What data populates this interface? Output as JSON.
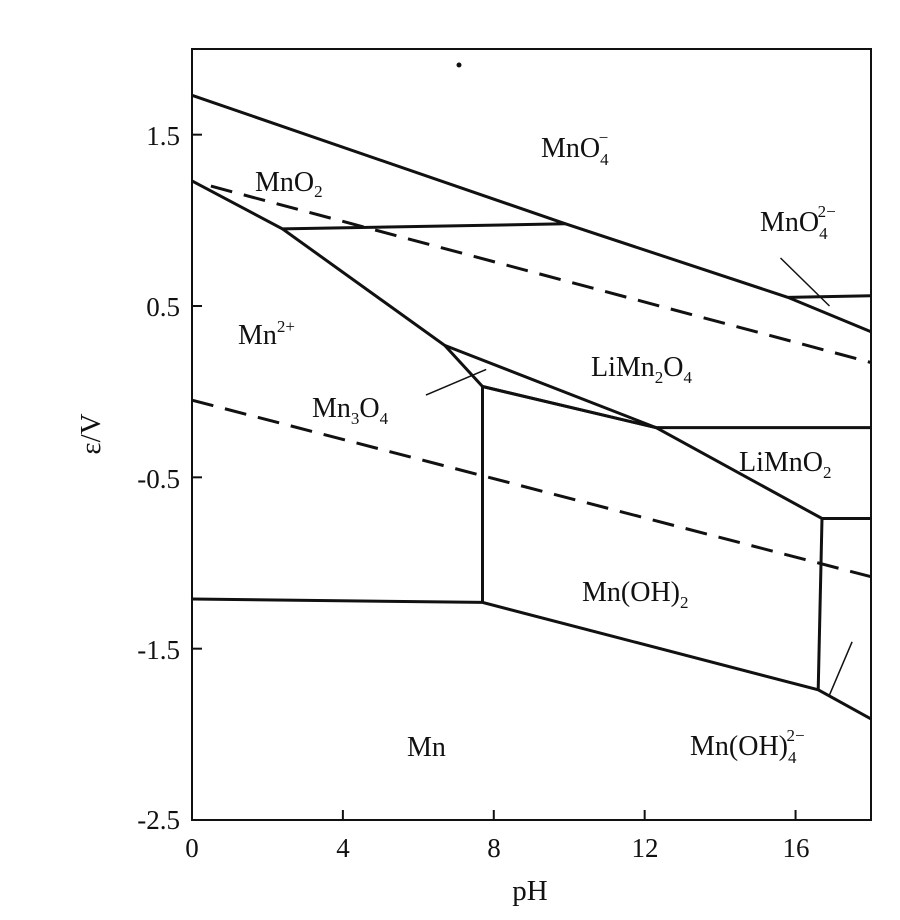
{
  "chart_data": {
    "type": "diagram",
    "xlabel": "pH",
    "ylabel": "ε/V",
    "xlim": [
      0,
      18
    ],
    "ylim": [
      -2.5,
      2.0
    ],
    "x_ticks": [
      "0",
      "4",
      "8",
      "12",
      "16"
    ],
    "x_tick_values": [
      0,
      4,
      8,
      12,
      16
    ],
    "y_ticks": [
      "1.5",
      "0.5",
      "-0.5",
      "-1.5",
      "-2.5"
    ],
    "y_tick_values": [
      1.5,
      0.5,
      -0.5,
      -1.5,
      -2.5
    ],
    "regions": {
      "mno4_minus": {
        "base": "MnO",
        "sub": "4",
        "sup": "−"
      },
      "mno2": {
        "base": "MnO",
        "sub": "2"
      },
      "mno4_2minus": {
        "base": "MnO",
        "sub": "4",
        "sup": "2−"
      },
      "mn2plus": {
        "base": "Mn",
        "sup": "2+"
      },
      "limn2o4": {
        "base": "LiMn",
        "sub": "2",
        "tail": "O",
        "sub2": "4"
      },
      "mn3o4": {
        "base": "Mn",
        "sub": "3",
        "tail": "O",
        "sub2": "4"
      },
      "limno2": {
        "base": "LiMnO",
        "sub": "2"
      },
      "mnoh2": {
        "base": "Mn(OH)",
        "sub": "2"
      },
      "mn": {
        "base": "Mn"
      },
      "mnoh4": {
        "base": "Mn(OH)",
        "sub": "4",
        "sup": "2−"
      }
    },
    "solid_boundaries": [
      {
        "name": "mno4-upper",
        "points": [
          [
            0,
            1.73
          ],
          [
            9.9,
            0.98
          ],
          [
            15.8,
            0.55
          ],
          [
            18,
            0.35
          ]
        ]
      },
      {
        "name": "mn2-mno2",
        "points": [
          [
            0,
            1.23
          ],
          [
            2.4,
            0.95
          ],
          [
            6.7,
            0.27
          ],
          [
            7.7,
            0.03
          ],
          [
            12.3,
            -0.21
          ],
          [
            16.7,
            -0.74
          ],
          [
            18,
            -0.74
          ]
        ]
      },
      {
        "name": "mno2-mno4",
        "points": [
          [
            2.4,
            0.95
          ],
          [
            9.9,
            0.98
          ]
        ]
      },
      {
        "name": "mno4-mno4-2",
        "points": [
          [
            15.8,
            0.55
          ],
          [
            18,
            0.56
          ]
        ]
      },
      {
        "name": "limn2o4-upper",
        "points": [
          [
            6.7,
            0.27
          ],
          [
            12.3,
            -0.21
          ]
        ]
      },
      {
        "name": "limn2o4-lower",
        "points": [
          [
            7.7,
            0.03
          ],
          [
            12.3,
            -0.21
          ],
          [
            18,
            -0.21
          ]
        ]
      },
      {
        "name": "mn3o4-vertical",
        "points": [
          [
            7.7,
            0.03
          ],
          [
            7.7,
            -1.23
          ]
        ]
      },
      {
        "name": "mn-line",
        "points": [
          [
            0,
            -1.21
          ],
          [
            7.7,
            -1.23
          ],
          [
            16.6,
            -1.74
          ],
          [
            18,
            -1.91
          ]
        ]
      },
      {
        "name": "mnoh4-vertical",
        "points": [
          [
            16.7,
            -0.74
          ],
          [
            16.6,
            -1.74
          ]
        ]
      }
    ],
    "dashed_lines": [
      {
        "name": "oxygen-line",
        "points": [
          [
            0.5,
            1.2
          ],
          [
            18,
            0.17
          ]
        ]
      },
      {
        "name": "hydrogen-line",
        "points": [
          [
            0,
            -0.05
          ],
          [
            18,
            -1.08
          ]
        ]
      }
    ],
    "leaders": [
      {
        "name": "mno4-2",
        "points": [
          [
            16.9,
            0.5
          ],
          [
            15.6,
            0.78
          ]
        ]
      },
      {
        "name": "mn3o4",
        "points": [
          [
            7.8,
            0.13
          ],
          [
            6.2,
            -0.02
          ]
        ]
      },
      {
        "name": "mnoh4",
        "points": [
          [
            17.5,
            -1.46
          ],
          [
            16.9,
            -1.77
          ]
        ]
      }
    ]
  }
}
